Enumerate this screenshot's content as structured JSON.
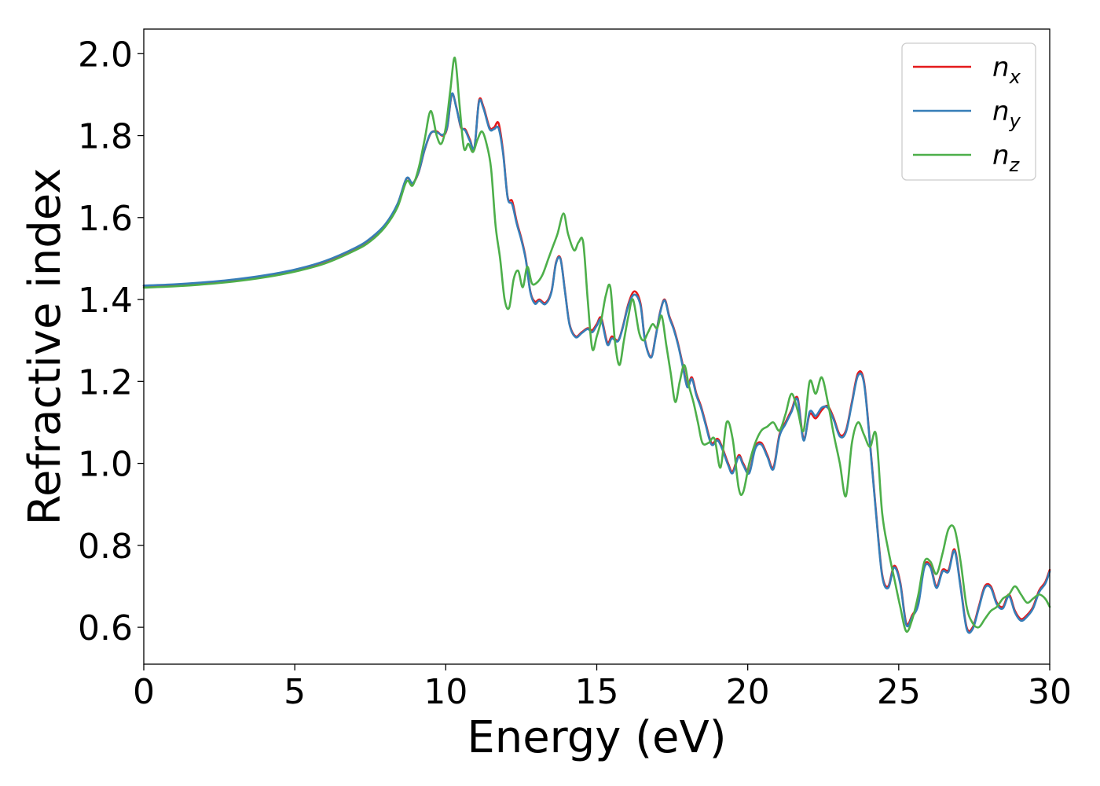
{
  "chart_data": {
    "type": "line",
    "xlabel": "Energy (eV)",
    "ylabel": "Refractive index",
    "xlim": [
      0,
      30
    ],
    "ylim": [
      0.51,
      2.06
    ],
    "xticks": [
      "0",
      "5",
      "10",
      "15",
      "20",
      "25",
      "30"
    ],
    "yticks": [
      "0.6",
      "0.8",
      "1.0",
      "1.2",
      "1.4",
      "1.6",
      "1.8",
      "2.0"
    ],
    "grid": false,
    "legend_position": "top-right",
    "series": [
      {
        "name": "n_x",
        "legend_base": "n",
        "legend_sub": "x",
        "color": "#e41a1c",
        "x": [
          0,
          1,
          2,
          3,
          4,
          5,
          6,
          7,
          7.5,
          8,
          8.4,
          8.7,
          8.9,
          9.1,
          9.3,
          9.5,
          9.7,
          9.9,
          10.05,
          10.2,
          10.35,
          10.5,
          10.65,
          10.8,
          10.95,
          11.1,
          11.25,
          11.45,
          11.6,
          11.75,
          11.9,
          12.05,
          12.2,
          12.35,
          12.5,
          12.65,
          12.8,
          12.95,
          13.1,
          13.3,
          13.5,
          13.65,
          13.8,
          13.95,
          14.1,
          14.3,
          14.5,
          14.7,
          14.85,
          15.0,
          15.15,
          15.35,
          15.5,
          15.7,
          15.85,
          16.05,
          16.25,
          16.45,
          16.6,
          16.8,
          16.95,
          17.1,
          17.25,
          17.4,
          17.55,
          17.7,
          17.85,
          18.0,
          18.15,
          18.3,
          18.45,
          18.6,
          18.8,
          19.0,
          19.15,
          19.35,
          19.5,
          19.7,
          19.85,
          20.05,
          20.25,
          20.45,
          20.65,
          20.85,
          21.05,
          21.25,
          21.45,
          21.65,
          21.85,
          22.05,
          22.25,
          22.45,
          22.65,
          22.85,
          23.05,
          23.25,
          23.45,
          23.65,
          23.85,
          24.05,
          24.25,
          24.45,
          24.65,
          24.85,
          25.05,
          25.25,
          25.45,
          25.65,
          25.85,
          26.05,
          26.25,
          26.45,
          26.65,
          26.85,
          27.05,
          27.25,
          27.45,
          27.65,
          27.85,
          28.05,
          28.25,
          28.45,
          28.65,
          28.85,
          29.05,
          29.25,
          29.45,
          29.65,
          29.85,
          30.0
        ],
        "y": [
          1.433,
          1.436,
          1.441,
          1.448,
          1.458,
          1.472,
          1.493,
          1.525,
          1.548,
          1.583,
          1.632,
          1.695,
          1.683,
          1.71,
          1.765,
          1.805,
          1.81,
          1.8,
          1.82,
          1.9,
          1.87,
          1.82,
          1.815,
          1.79,
          1.77,
          1.885,
          1.87,
          1.82,
          1.82,
          1.83,
          1.76,
          1.65,
          1.64,
          1.59,
          1.55,
          1.5,
          1.42,
          1.395,
          1.4,
          1.392,
          1.42,
          1.49,
          1.5,
          1.42,
          1.34,
          1.31,
          1.32,
          1.33,
          1.325,
          1.34,
          1.355,
          1.295,
          1.31,
          1.3,
          1.33,
          1.39,
          1.42,
          1.39,
          1.3,
          1.26,
          1.31,
          1.37,
          1.4,
          1.36,
          1.33,
          1.29,
          1.24,
          1.19,
          1.21,
          1.17,
          1.14,
          1.1,
          1.05,
          1.06,
          1.04,
          1.0,
          0.98,
          1.02,
          1.0,
          0.98,
          1.04,
          1.05,
          1.02,
          0.99,
          1.07,
          1.1,
          1.13,
          1.16,
          1.06,
          1.12,
          1.11,
          1.13,
          1.14,
          1.11,
          1.07,
          1.08,
          1.15,
          1.22,
          1.2,
          1.05,
          0.88,
          0.73,
          0.7,
          0.75,
          0.71,
          0.61,
          0.63,
          0.66,
          0.75,
          0.75,
          0.7,
          0.74,
          0.74,
          0.79,
          0.7,
          0.6,
          0.6,
          0.65,
          0.7,
          0.7,
          0.66,
          0.65,
          0.68,
          0.64,
          0.62,
          0.63,
          0.65,
          0.69,
          0.71,
          0.74
        ]
      },
      {
        "name": "n_y",
        "legend_base": "n",
        "legend_sub": "y",
        "color": "#377eb8",
        "x": [
          0,
          1,
          2,
          3,
          4,
          5,
          6,
          7,
          7.5,
          8,
          8.4,
          8.7,
          8.9,
          9.1,
          9.3,
          9.5,
          9.7,
          9.9,
          10.05,
          10.2,
          10.35,
          10.5,
          10.65,
          10.8,
          10.95,
          11.1,
          11.25,
          11.45,
          11.6,
          11.75,
          11.9,
          12.05,
          12.2,
          12.35,
          12.5,
          12.65,
          12.8,
          12.95,
          13.1,
          13.3,
          13.5,
          13.65,
          13.8,
          13.95,
          14.1,
          14.3,
          14.5,
          14.7,
          14.85,
          15.0,
          15.15,
          15.35,
          15.5,
          15.7,
          15.85,
          16.05,
          16.25,
          16.45,
          16.6,
          16.8,
          16.95,
          17.1,
          17.25,
          17.4,
          17.55,
          17.7,
          17.85,
          18.0,
          18.15,
          18.3,
          18.45,
          18.6,
          18.8,
          19.0,
          19.15,
          19.35,
          19.5,
          19.7,
          19.85,
          20.05,
          20.25,
          20.45,
          20.65,
          20.85,
          21.05,
          21.25,
          21.45,
          21.65,
          21.85,
          22.05,
          22.25,
          22.45,
          22.65,
          22.85,
          23.05,
          23.25,
          23.45,
          23.65,
          23.85,
          24.05,
          24.25,
          24.45,
          24.65,
          24.85,
          25.05,
          25.25,
          25.45,
          25.65,
          25.85,
          26.05,
          26.25,
          26.45,
          26.65,
          26.85,
          27.05,
          27.25,
          27.45,
          27.65,
          27.85,
          28.05,
          28.25,
          28.45,
          28.65,
          28.85,
          29.05,
          29.25,
          29.45,
          29.65,
          29.85,
          30.0
        ],
        "y": [
          1.434,
          1.437,
          1.442,
          1.449,
          1.459,
          1.473,
          1.494,
          1.526,
          1.549,
          1.584,
          1.633,
          1.696,
          1.684,
          1.711,
          1.766,
          1.806,
          1.808,
          1.802,
          1.822,
          1.902,
          1.868,
          1.822,
          1.812,
          1.787,
          1.772,
          1.882,
          1.866,
          1.816,
          1.816,
          1.818,
          1.755,
          1.648,
          1.632,
          1.585,
          1.546,
          1.497,
          1.418,
          1.39,
          1.397,
          1.389,
          1.418,
          1.488,
          1.498,
          1.418,
          1.338,
          1.308,
          1.318,
          1.328,
          1.32,
          1.336,
          1.35,
          1.29,
          1.305,
          1.298,
          1.328,
          1.386,
          1.412,
          1.385,
          1.298,
          1.258,
          1.308,
          1.368,
          1.398,
          1.357,
          1.327,
          1.287,
          1.236,
          1.186,
          1.206,
          1.166,
          1.136,
          1.096,
          1.046,
          1.056,
          1.036,
          0.996,
          0.976,
          1.016,
          0.996,
          0.976,
          1.036,
          1.046,
          1.016,
          0.986,
          1.066,
          1.096,
          1.126,
          1.156,
          1.056,
          1.126,
          1.116,
          1.136,
          1.136,
          1.106,
          1.066,
          1.076,
          1.146,
          1.214,
          1.196,
          1.046,
          0.876,
          0.726,
          0.696,
          0.746,
          0.706,
          0.606,
          0.626,
          0.656,
          0.746,
          0.746,
          0.696,
          0.736,
          0.736,
          0.786,
          0.696,
          0.596,
          0.596,
          0.646,
          0.696,
          0.696,
          0.656,
          0.646,
          0.676,
          0.636,
          0.616,
          0.626,
          0.646,
          0.686,
          0.706,
          0.736
        ]
      },
      {
        "name": "n_z",
        "legend_base": "n",
        "legend_sub": "z",
        "color": "#4daf4a",
        "x": [
          0,
          1,
          2,
          3,
          4,
          5,
          6,
          7,
          7.5,
          8,
          8.4,
          8.7,
          8.9,
          9.1,
          9.3,
          9.5,
          9.7,
          9.85,
          10.0,
          10.15,
          10.3,
          10.45,
          10.6,
          10.75,
          10.9,
          11.05,
          11.2,
          11.35,
          11.5,
          11.65,
          11.8,
          11.95,
          12.1,
          12.25,
          12.4,
          12.55,
          12.7,
          12.85,
          13.0,
          13.2,
          13.4,
          13.55,
          13.7,
          13.9,
          14.05,
          14.25,
          14.4,
          14.55,
          14.7,
          14.85,
          15.0,
          15.15,
          15.3,
          15.45,
          15.6,
          15.75,
          15.9,
          16.05,
          16.2,
          16.4,
          16.55,
          16.7,
          16.85,
          17.0,
          17.15,
          17.3,
          17.45,
          17.6,
          17.75,
          17.9,
          18.05,
          18.2,
          18.35,
          18.5,
          18.7,
          18.9,
          19.1,
          19.3,
          19.5,
          19.7,
          19.85,
          20.05,
          20.25,
          20.45,
          20.65,
          20.85,
          21.05,
          21.25,
          21.45,
          21.65,
          21.85,
          22.05,
          22.25,
          22.45,
          22.65,
          22.85,
          23.05,
          23.25,
          23.45,
          23.65,
          23.85,
          24.05,
          24.25,
          24.45,
          24.65,
          24.85,
          25.05,
          25.25,
          25.45,
          25.65,
          25.85,
          26.05,
          26.25,
          26.45,
          26.65,
          26.85,
          27.05,
          27.25,
          27.45,
          27.65,
          27.85,
          28.05,
          28.25,
          28.45,
          28.65,
          28.85,
          29.05,
          29.25,
          29.45,
          29.65,
          29.85,
          30.0
        ],
        "y": [
          1.429,
          1.432,
          1.437,
          1.444,
          1.454,
          1.468,
          1.488,
          1.52,
          1.542,
          1.578,
          1.625,
          1.688,
          1.678,
          1.72,
          1.79,
          1.86,
          1.8,
          1.78,
          1.82,
          1.91,
          1.99,
          1.88,
          1.77,
          1.78,
          1.76,
          1.79,
          1.81,
          1.78,
          1.72,
          1.58,
          1.5,
          1.4,
          1.38,
          1.45,
          1.47,
          1.43,
          1.48,
          1.44,
          1.44,
          1.46,
          1.5,
          1.53,
          1.56,
          1.61,
          1.56,
          1.52,
          1.54,
          1.54,
          1.4,
          1.28,
          1.31,
          1.35,
          1.41,
          1.43,
          1.3,
          1.24,
          1.3,
          1.36,
          1.4,
          1.32,
          1.3,
          1.32,
          1.34,
          1.33,
          1.36,
          1.29,
          1.22,
          1.15,
          1.2,
          1.24,
          1.19,
          1.15,
          1.1,
          1.05,
          1.05,
          1.06,
          0.99,
          1.1,
          1.06,
          0.94,
          0.93,
          1.0,
          1.05,
          1.08,
          1.09,
          1.1,
          1.08,
          1.12,
          1.17,
          1.13,
          1.08,
          1.2,
          1.17,
          1.21,
          1.15,
          1.07,
          1.0,
          0.92,
          1.05,
          1.1,
          1.07,
          1.04,
          1.07,
          0.88,
          0.79,
          0.72,
          0.65,
          0.59,
          0.62,
          0.68,
          0.76,
          0.76,
          0.73,
          0.78,
          0.84,
          0.84,
          0.76,
          0.65,
          0.61,
          0.6,
          0.62,
          0.64,
          0.65,
          0.67,
          0.68,
          0.7,
          0.68,
          0.66,
          0.67,
          0.68,
          0.67,
          0.65
        ]
      }
    ]
  }
}
